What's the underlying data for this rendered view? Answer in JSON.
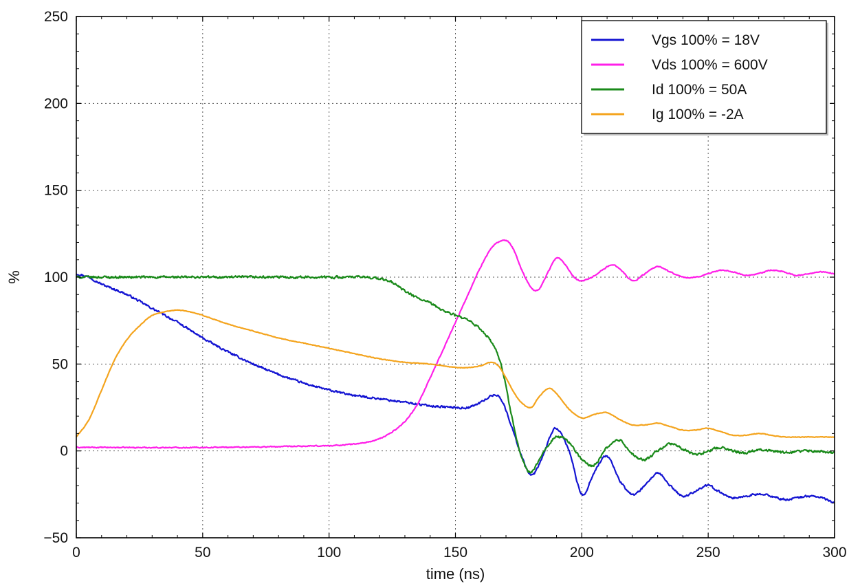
{
  "chart_data": {
    "type": "line",
    "title": "",
    "xlabel": "time (ns)",
    "ylabel": "%",
    "xlim": [
      0,
      300
    ],
    "ylim": [
      -50,
      250
    ],
    "xticks": [
      0,
      50,
      100,
      150,
      200,
      250,
      300
    ],
    "yticks": [
      -50,
      0,
      50,
      100,
      150,
      200,
      250
    ],
    "ytick_labels": [
      "−50",
      "0",
      "50",
      "100",
      "150",
      "200",
      "250"
    ],
    "grid": true,
    "legend_position": "top-right",
    "series": [
      {
        "name": "Vgs 100% = 18V",
        "color": "#1414d2",
        "noise": 0.5,
        "x": [
          0,
          5,
          10,
          20,
          30,
          40,
          50,
          60,
          70,
          80,
          90,
          100,
          110,
          120,
          130,
          140,
          150,
          155,
          160,
          165,
          168,
          172,
          176,
          180,
          184,
          188,
          190,
          195,
          200,
          205,
          210,
          215,
          220,
          225,
          230,
          235,
          240,
          245,
          250,
          255,
          260,
          265,
          270,
          275,
          280,
          285,
          290,
          295,
          300
        ],
        "y": [
          102,
          100,
          96,
          90,
          82,
          74,
          65,
          57,
          50,
          44,
          39,
          35,
          32,
          30,
          28,
          26,
          25,
          25,
          28,
          32,
          30,
          15,
          -2,
          -14,
          -5,
          10,
          13,
          0,
          -25,
          -12,
          -3,
          -17,
          -25,
          -20,
          -13,
          -20,
          -26,
          -23,
          -20,
          -24,
          -27,
          -26,
          -25,
          -26,
          -28,
          -27,
          -26,
          -27,
          -30
        ]
      },
      {
        "name": "Vds 100% = 600V",
        "color": "#ff1fe8",
        "noise": 0.25,
        "x": [
          0,
          50,
          100,
          110,
          115,
          120,
          125,
          130,
          135,
          140,
          145,
          150,
          155,
          160,
          165,
          170,
          173,
          176,
          180,
          183,
          187,
          190,
          193,
          197,
          200,
          204,
          208,
          212,
          215,
          220,
          225,
          230,
          235,
          240,
          245,
          250,
          255,
          260,
          265,
          270,
          275,
          280,
          285,
          290,
          295,
          300
        ],
        "y": [
          2,
          2,
          3,
          4,
          5,
          7,
          11,
          17,
          27,
          42,
          58,
          74,
          90,
          106,
          118,
          121,
          116,
          105,
          94,
          93,
          104,
          111,
          108,
          100,
          98,
          100,
          104,
          107,
          105,
          98,
          102,
          106,
          103,
          100,
          100,
          102,
          104,
          103,
          101,
          102,
          104,
          103,
          101,
          102,
          103,
          102
        ]
      },
      {
        "name": "Id 100% = 50A",
        "color": "#1a8a1a",
        "noise": 0.6,
        "x": [
          0,
          20,
          50,
          80,
          100,
          110,
          115,
          120,
          125,
          130,
          135,
          140,
          145,
          150,
          155,
          160,
          163,
          166,
          169,
          172,
          175,
          178,
          180,
          183,
          186,
          190,
          195,
          200,
          205,
          210,
          215,
          220,
          225,
          230,
          235,
          240,
          245,
          250,
          255,
          260,
          265,
          270,
          275,
          280,
          290,
          300
        ],
        "y": [
          100,
          100,
          100,
          100,
          100,
          100,
          100,
          99,
          97,
          92,
          88,
          85,
          81,
          78,
          75,
          70,
          65,
          58,
          44,
          22,
          2,
          -10,
          -12,
          -6,
          2,
          8,
          5,
          -5,
          -8,
          2,
          6,
          -2,
          -5,
          0,
          4,
          1,
          -2,
          0,
          2,
          0,
          -1,
          1,
          0,
          -1,
          0,
          -1
        ]
      },
      {
        "name": "Ig 100% = -2A",
        "color": "#f4a41e",
        "noise": 0.15,
        "x": [
          0,
          5,
          10,
          15,
          20,
          25,
          30,
          35,
          40,
          45,
          50,
          60,
          70,
          80,
          90,
          100,
          110,
          120,
          130,
          140,
          150,
          155,
          160,
          164,
          167,
          170,
          173,
          176,
          180,
          183,
          187,
          190,
          195,
          200,
          205,
          210,
          215,
          220,
          225,
          230,
          235,
          240,
          245,
          250,
          255,
          260,
          265,
          270,
          275,
          280,
          290,
          300
        ],
        "y": [
          8,
          18,
          35,
          52,
          64,
          72,
          78,
          80,
          81,
          80,
          78,
          73,
          69,
          65,
          62,
          59,
          56,
          53,
          51,
          50,
          48,
          48,
          49,
          51,
          49,
          42,
          34,
          28,
          25,
          31,
          36,
          33,
          24,
          19,
          21,
          22,
          18,
          15,
          15,
          16,
          14,
          12,
          12,
          13,
          11,
          9,
          9,
          10,
          9,
          8,
          8,
          8
        ]
      }
    ],
    "colors": {
      "frame": "#000000",
      "grid": "#5a5a5a",
      "background": "#ffffff"
    }
  }
}
